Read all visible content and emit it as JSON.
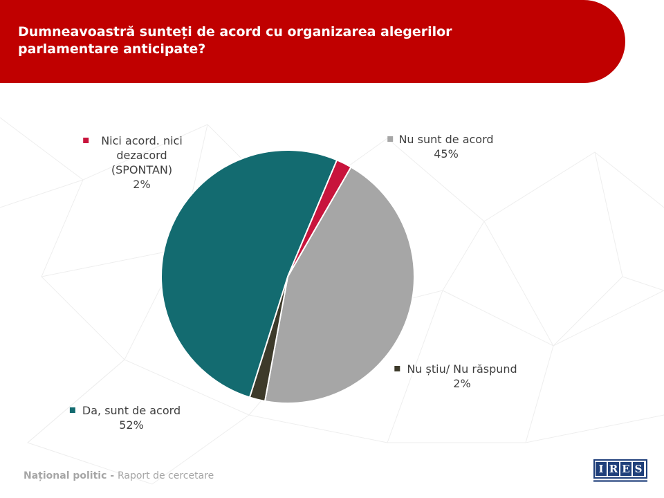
{
  "header": {
    "title": "Dumneavoastră sunteți de acord cu organizarea alegerilor\nparlamentare  anticipate?"
  },
  "chart_data": {
    "type": "pie",
    "title": "Dumneavoastră sunteți de acord cu organizarea alegerilor parlamentare anticipate?",
    "slices": [
      {
        "label": "Nu sunt de acord",
        "label_lines": [
          "Nu sunt de acord"
        ],
        "value": 45,
        "value_label": "45%",
        "color": "#a6a6a6"
      },
      {
        "label": "Nu știu/ Nu răspund",
        "label_lines": [
          "Nu știu/ Nu răspund"
        ],
        "value": 2,
        "value_label": "2%",
        "color": "#3d3a2a"
      },
      {
        "label": "Da, sunt de acord",
        "label_lines": [
          "Da, sunt de acord"
        ],
        "value": 52,
        "value_label": "52%",
        "color": "#136b70"
      },
      {
        "label": "Nici acord. nici dezacord (SPONTAN)",
        "label_lines": [
          "Nici acord. nici",
          "dezacord",
          "(SPONTAN)"
        ],
        "value": 2,
        "value_label": "2%",
        "color": "#c8143c"
      }
    ]
  },
  "footer": {
    "bold_text": "Național politic - ",
    "text": "Raport de cercetare"
  },
  "logo": {
    "letters": [
      "I",
      "R",
      "E",
      "S"
    ]
  }
}
